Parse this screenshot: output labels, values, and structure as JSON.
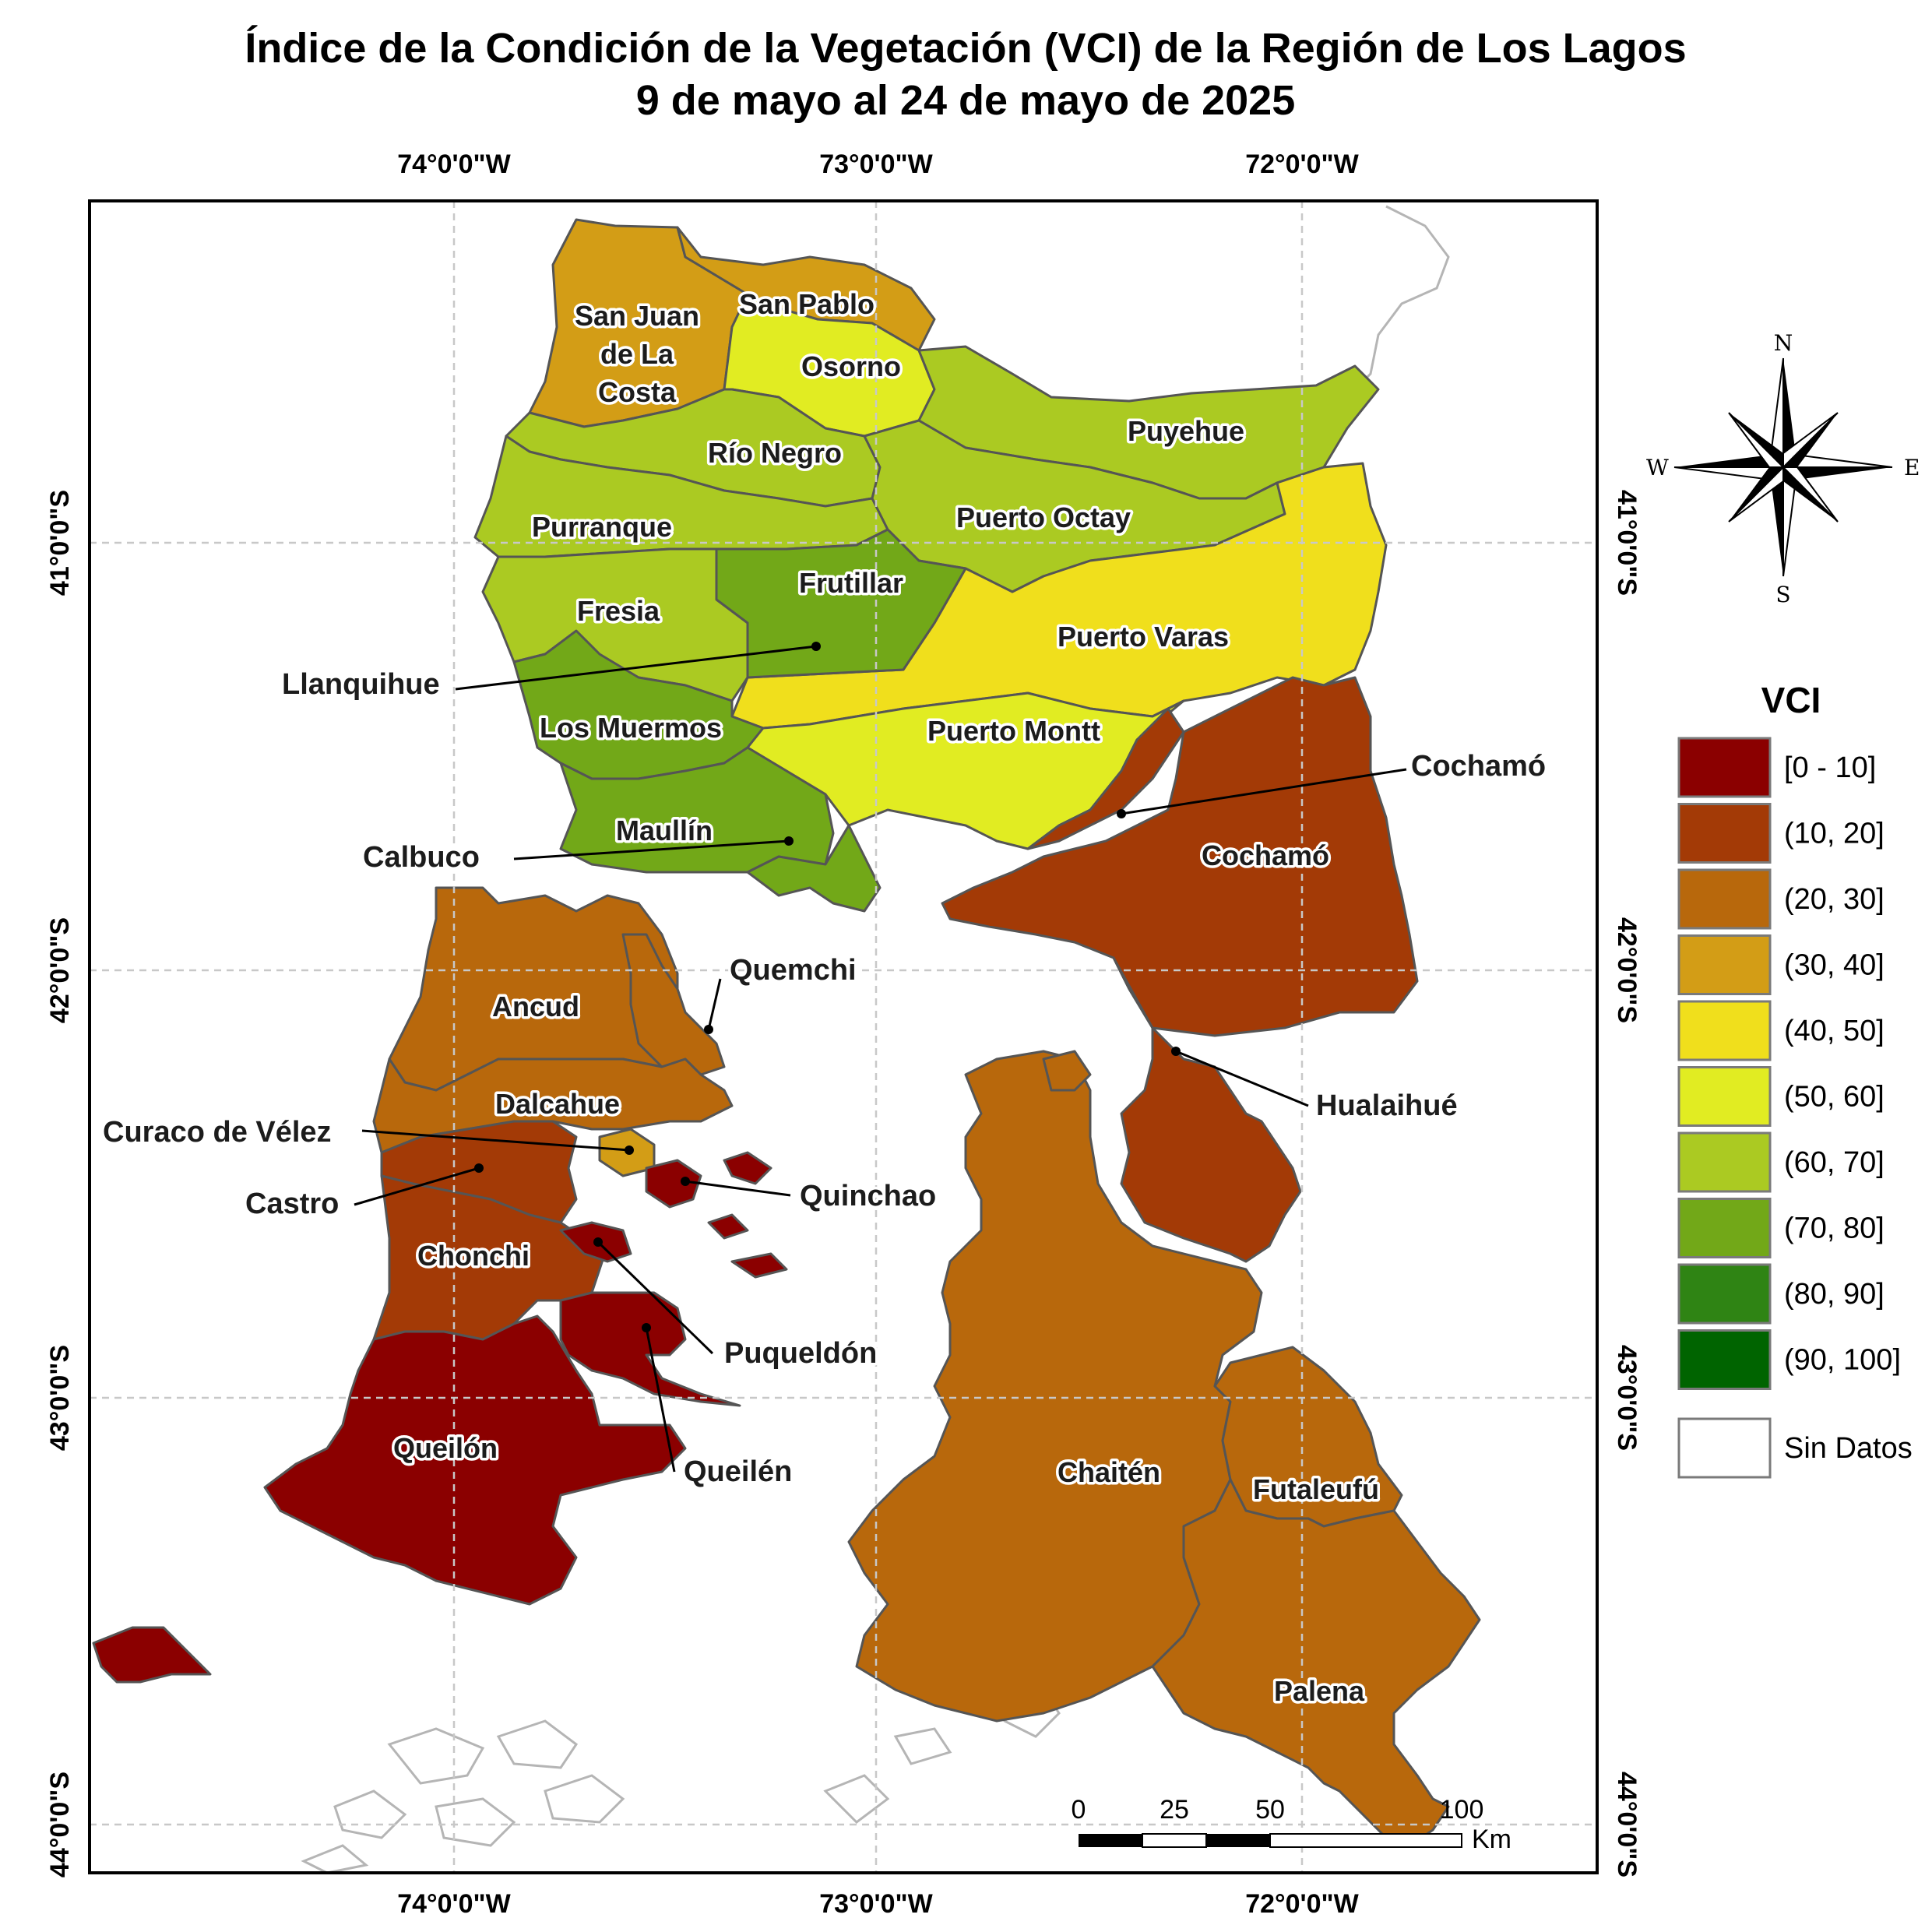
{
  "title": {
    "line1": "Índice de la Condición de la Vegetación (VCI) de la Región de Los Lagos",
    "line2": "9 de mayo al 24 de mayo de 2025"
  },
  "axes": {
    "longitude_labels": [
      "74°0'0\"W",
      "73°0'0\"W",
      "72°0'0\"W"
    ],
    "latitude_labels": [
      "41°0'0\"S",
      "42°0'0\"S",
      "43°0'0\"S",
      "44°0'0\"S"
    ]
  },
  "compass": {
    "north": "N",
    "south": "S",
    "east": "E",
    "west": "W"
  },
  "legend": {
    "title": "VCI",
    "classes": [
      {
        "label": "[0 - 10]",
        "color": "#8b0000"
      },
      {
        "label": "(10, 20]",
        "color": "#a33a06"
      },
      {
        "label": "(20, 30]",
        "color": "#b8680c"
      },
      {
        "label": "(30, 40]",
        "color": "#d39d16"
      },
      {
        "label": "(40, 50]",
        "color": "#f0df1c"
      },
      {
        "label": "(50, 60]",
        "color": "#e1ec22"
      },
      {
        "label": "(60, 70]",
        "color": "#abca22"
      },
      {
        "label": "(70, 80]",
        "color": "#72a818"
      },
      {
        "label": "(80, 90]",
        "color": "#2f8414"
      },
      {
        "label": "(90, 100]",
        "color": "#006400"
      }
    ],
    "no_data": {
      "label": "Sin Datos",
      "color": "#ffffff"
    }
  },
  "scale_bar": {
    "ticks": [
      "0",
      "25",
      "50",
      "100"
    ],
    "unit": "Km"
  },
  "communes": {
    "san_juan": {
      "name_l1": "San Juan",
      "name_l2": "de La",
      "name_l3": "Costa",
      "vci_class": "(30, 40]"
    },
    "san_pablo": {
      "name": "San Pablo",
      "vci_class": "(30, 40]"
    },
    "osorno": {
      "name": "Osorno",
      "vci_class": "(50, 60]"
    },
    "puyehue": {
      "name": "Puyehue",
      "vci_class": "(60, 70]"
    },
    "rio_negro": {
      "name": "Río Negro",
      "vci_class": "(60, 70]"
    },
    "purranque": {
      "name": "Purranque",
      "vci_class": "(60, 70]"
    },
    "puerto_octay": {
      "name": "Puerto Octay",
      "vci_class": "(60, 70]"
    },
    "frutillar": {
      "name": "Frutillar",
      "vci_class": "(70, 80]"
    },
    "fresia": {
      "name": "Fresia",
      "vci_class": "(60, 70]"
    },
    "puerto_varas": {
      "name": "Puerto Varas",
      "vci_class": "(40, 50]"
    },
    "llanquihue": {
      "name": "Llanquihue",
      "vci_class": "(70, 80]"
    },
    "los_muermos": {
      "name": "Los Muermos",
      "vci_class": "(70, 80]"
    },
    "puerto_montt": {
      "name": "Puerto Montt",
      "vci_class": "(50, 60]"
    },
    "maullin": {
      "name": "Maullín",
      "vci_class": "(70, 80]"
    },
    "calbuco": {
      "name": "Calbuco",
      "vci_class": "(70, 80]"
    },
    "cochamo": {
      "name": "Cochamó",
      "vci_class": "(10, 20]"
    },
    "cochamo_callout": {
      "name": "Cochamó"
    },
    "ancud": {
      "name": "Ancud",
      "vci_class": "(20, 30]"
    },
    "quemchi": {
      "name": "Quemchi",
      "vci_class": "(20, 30]"
    },
    "dalcahue": {
      "name": "Dalcahue",
      "vci_class": "(20, 30]"
    },
    "curaco": {
      "name": "Curaco de Vélez",
      "vci_class": "(30, 40]"
    },
    "castro": {
      "name": "Castro",
      "vci_class": "(10, 20]"
    },
    "quinchao": {
      "name": "Quinchao",
      "vci_class": "[0 - 10]"
    },
    "chonchi": {
      "name": "Chonchi",
      "vci_class": "(10, 20]"
    },
    "puqueldon": {
      "name": "Puqueldón",
      "vci_class": "[0 - 10]"
    },
    "queilen": {
      "name": "Queilén",
      "vci_class": "[0 - 10]"
    },
    "quellon": {
      "name": "Queilón",
      "vci_class": "[0 - 10]"
    },
    "hualaihue": {
      "name": "Hualaihué",
      "vci_class": "(10, 20]"
    },
    "chaiten": {
      "name": "Chaitén",
      "vci_class": "(20, 30]"
    },
    "futaleufu": {
      "name": "Futaleufú",
      "vci_class": "(20, 30]"
    },
    "palena": {
      "name": "Palena",
      "vci_class": "(20, 30]"
    }
  }
}
